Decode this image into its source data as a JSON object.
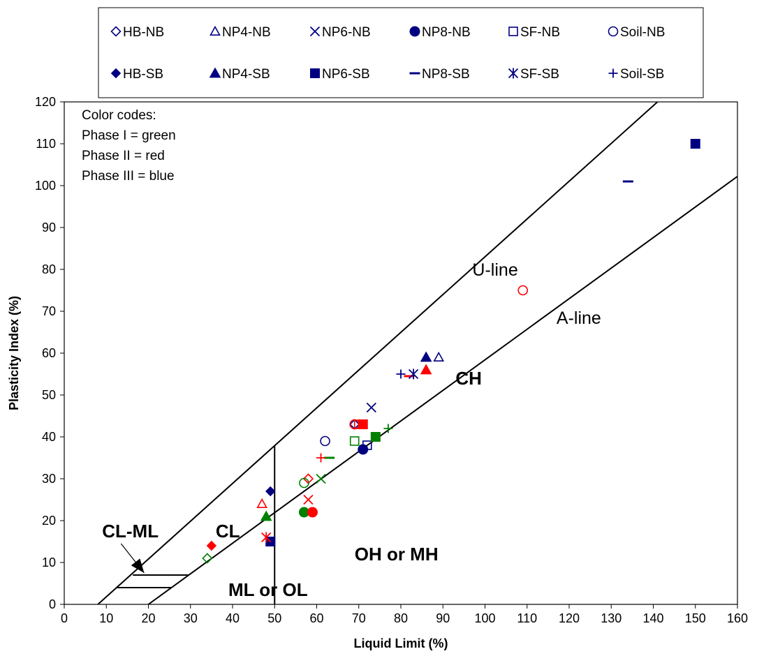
{
  "chart_data": {
    "type": "scatter",
    "title": "",
    "xlabel": "Liquid Limit (%)",
    "ylabel": "Plasticity Index (%)",
    "xlim": [
      0,
      160
    ],
    "ylim": [
      0,
      120
    ],
    "x_ticks": [
      0,
      10,
      20,
      30,
      40,
      50,
      60,
      70,
      80,
      90,
      100,
      110,
      120,
      130,
      140,
      150,
      160
    ],
    "y_ticks": [
      0,
      10,
      20,
      30,
      40,
      50,
      60,
      70,
      80,
      90,
      100,
      110,
      120
    ],
    "grid": false,
    "legend_placement": "top",
    "phase_colors": {
      "Phase I": "#008000",
      "Phase II": "#ff0000",
      "Phase III": "#000080"
    },
    "color_notes": [
      "Color codes:",
      "Phase I  = green",
      "Phase II = red",
      "Phase III = blue"
    ],
    "reference_lines": [
      {
        "name": "U-line",
        "label": "U-line",
        "points": [
          [
            8,
            0
          ],
          [
            141,
            120
          ]
        ]
      },
      {
        "name": "A-line",
        "label": "A-line",
        "points": [
          [
            20,
            0
          ],
          [
            160,
            102.2
          ]
        ]
      },
      {
        "name": "LL=50",
        "points": [
          [
            50,
            0
          ],
          [
            50,
            37.8
          ]
        ]
      },
      {
        "name": "CL-ML upper",
        "points": [
          [
            16.3,
            7
          ],
          [
            29.6,
            7
          ]
        ]
      },
      {
        "name": "CL-ML lower",
        "points": [
          [
            12.5,
            4
          ],
          [
            25.5,
            4
          ]
        ]
      }
    ],
    "region_labels": [
      {
        "text": "CH",
        "x": 93,
        "y": 54
      },
      {
        "text": "CL",
        "x": 36,
        "y": 17.5
      },
      {
        "text": "OH or MH",
        "x": 69,
        "y": 12
      },
      {
        "text": "ML or OL",
        "x": 39,
        "y": 3.5
      },
      {
        "text": "CL-ML",
        "x": 9,
        "y": 17.5
      }
    ],
    "line_labels": [
      {
        "text": "U-line",
        "x": 97,
        "y": 80
      },
      {
        "text": "A-line",
        "x": 117,
        "y": 68.5
      }
    ],
    "arrow": {
      "from": [
        13.5,
        14.5
      ],
      "to": [
        19,
        7.5
      ]
    },
    "series": [
      {
        "name": "HB-NB",
        "marker": "diamond-open",
        "points": [
          {
            "x": 34,
            "y": 11,
            "color": "#008000"
          },
          {
            "x": 58,
            "y": 30,
            "color": "#ff0000"
          },
          {
            "x": 69,
            "y": 43,
            "color": "#000080"
          }
        ]
      },
      {
        "name": "NP4-NB",
        "marker": "triangle-open",
        "points": [
          {
            "x": 47,
            "y": 24,
            "color": "#ff0000"
          },
          {
            "x": 89,
            "y": 59,
            "color": "#000080"
          }
        ]
      },
      {
        "name": "NP6-NB",
        "marker": "x",
        "points": [
          {
            "x": 61,
            "y": 30,
            "color": "#008000"
          },
          {
            "x": 58,
            "y": 25,
            "color": "#ff0000"
          },
          {
            "x": 73,
            "y": 47,
            "color": "#000080"
          }
        ]
      },
      {
        "name": "NP8-NB",
        "marker": "circle-filled",
        "points": [
          {
            "x": 57,
            "y": 22,
            "color": "#008000"
          },
          {
            "x": 59,
            "y": 22,
            "color": "#ff0000"
          },
          {
            "x": 71,
            "y": 37,
            "color": "#000080"
          }
        ]
      },
      {
        "name": "SF-NB",
        "marker": "square-open",
        "points": [
          {
            "x": 69,
            "y": 39,
            "color": "#008000"
          },
          {
            "x": 70,
            "y": 43,
            "color": "#ff0000"
          },
          {
            "x": 72,
            "y": 38,
            "color": "#000080"
          }
        ]
      },
      {
        "name": "Soil-NB",
        "marker": "circle-open",
        "points": [
          {
            "x": 57,
            "y": 29,
            "color": "#008000"
          },
          {
            "x": 69,
            "y": 43,
            "color": "#ff0000"
          },
          {
            "x": 109,
            "y": 75,
            "color": "#ff0000"
          },
          {
            "x": 62,
            "y": 39,
            "color": "#000080"
          }
        ]
      },
      {
        "name": "HB-SB",
        "marker": "diamond-filled",
        "points": [
          {
            "x": 35,
            "y": 14,
            "color": "#ff0000"
          },
          {
            "x": 49,
            "y": 27,
            "color": "#000080"
          }
        ]
      },
      {
        "name": "NP4-SB",
        "marker": "triangle-filled",
        "points": [
          {
            "x": 48,
            "y": 21,
            "color": "#008000"
          },
          {
            "x": 86,
            "y": 56,
            "color": "#ff0000"
          },
          {
            "x": 86,
            "y": 59,
            "color": "#000080"
          }
        ]
      },
      {
        "name": "NP6-SB",
        "marker": "square-filled",
        "points": [
          {
            "x": 74,
            "y": 40,
            "color": "#008000"
          },
          {
            "x": 71,
            "y": 43,
            "color": "#ff0000"
          },
          {
            "x": 49,
            "y": 15,
            "color": "#000080"
          },
          {
            "x": 150,
            "y": 110,
            "color": "#000080"
          }
        ]
      },
      {
        "name": "NP8-SB",
        "marker": "dash",
        "points": [
          {
            "x": 63,
            "y": 35,
            "color": "#008000"
          },
          {
            "x": 82,
            "y": 54.5,
            "color": "#ff0000"
          },
          {
            "x": 134,
            "y": 101,
            "color": "#000080"
          }
        ]
      },
      {
        "name": "SF-SB",
        "marker": "asterisk",
        "points": [
          {
            "x": 48,
            "y": 16,
            "color": "#ff0000"
          },
          {
            "x": 83,
            "y": 55,
            "color": "#000080"
          }
        ]
      },
      {
        "name": "Soil-SB",
        "marker": "plus",
        "points": [
          {
            "x": 77,
            "y": 42,
            "color": "#008000"
          },
          {
            "x": 61,
            "y": 35,
            "color": "#ff0000"
          },
          {
            "x": 80,
            "y": 55,
            "color": "#000080"
          }
        ]
      }
    ],
    "legend_rows": [
      [
        "HB-NB",
        "NP4-NB",
        "NP6-NB",
        "NP8-NB",
        "SF-NB",
        "Soil-NB"
      ],
      [
        "HB-SB",
        "NP4-SB",
        "NP6-SB",
        "NP8-SB",
        "SF-SB",
        "Soil-SB"
      ]
    ],
    "legend_marker_color": "#000080"
  }
}
